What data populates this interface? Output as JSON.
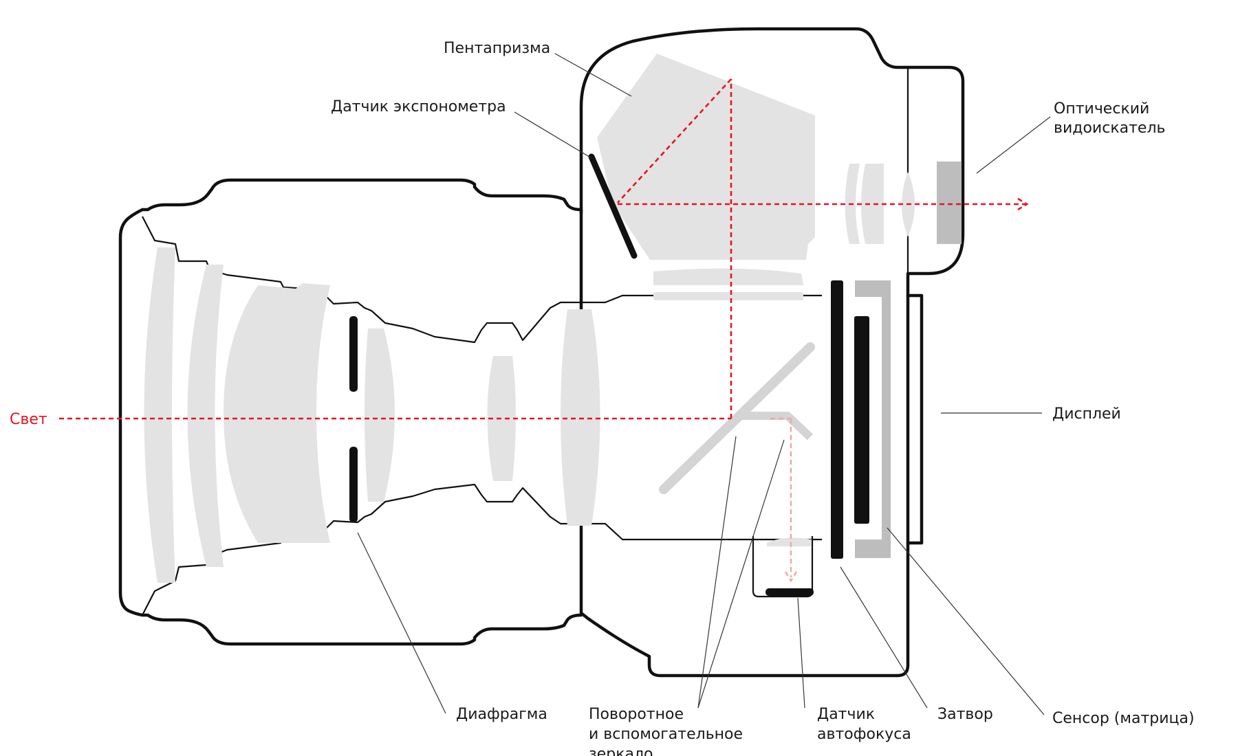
{
  "labels": {
    "pentaprism": "Пентапризма",
    "metering_sensor": "Датчик экспонометра",
    "viewfinder_line1": "Оптический",
    "viewfinder_line2": "видоискатель",
    "light": "Свет",
    "display": "Дисплей",
    "aperture": "Диафрагма",
    "mirror_line1": "Поворотное",
    "mirror_line2": "и вспомогательное",
    "mirror_line3": "зеркало",
    "af_sensor_line1": "Датчик",
    "af_sensor_line2": "автофокуса",
    "shutter": "Затвор",
    "sensor": "Сенсор (матрица)"
  },
  "colors": {
    "light_path": "#e8141e",
    "light_path_faint": "#f1a7a9",
    "outline": "#111111",
    "glass": "#e3e3e3"
  }
}
